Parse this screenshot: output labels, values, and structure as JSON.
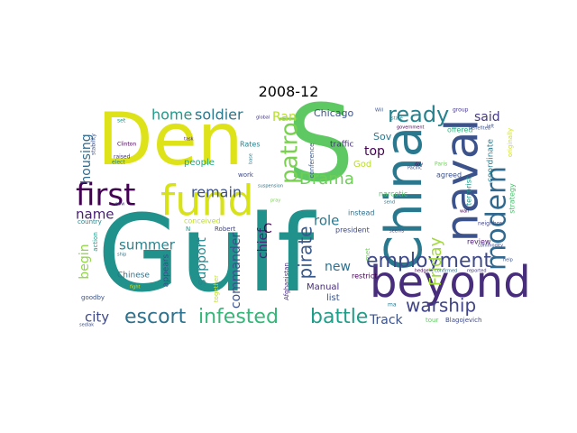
{
  "chart_data": {
    "type": "wordcloud",
    "title": "2008-12",
    "background": "#ffffff",
    "words": [
      {
        "text": "Gulf",
        "color": "#21918c"
      },
      {
        "text": "Den",
        "color": "#dde318"
      },
      {
        "text": "S",
        "color": "#5ec962"
      },
      {
        "text": "fund",
        "color": "#d8e219"
      },
      {
        "text": "China",
        "color": "#2a788e"
      },
      {
        "text": "naval",
        "color": "#3b528b"
      },
      {
        "text": "beyond",
        "color": "#472d7b"
      },
      {
        "text": "first",
        "color": "#440154"
      },
      {
        "text": "modern",
        "color": "#31688e"
      },
      {
        "text": "patrol",
        "color": "#7ad151"
      },
      {
        "text": "employment",
        "color": "#3e4989"
      },
      {
        "text": "escort",
        "color": "#2c728e"
      },
      {
        "text": "infested",
        "color": "#35b779"
      },
      {
        "text": "battle",
        "color": "#1f9e89"
      },
      {
        "text": "ready",
        "color": "#26828e"
      },
      {
        "text": "warship",
        "color": "#414487"
      },
      {
        "text": "pirate",
        "color": "#38588c"
      },
      {
        "text": "Drama",
        "color": "#6ece58"
      },
      {
        "text": "Friday",
        "color": "#a0da39"
      },
      {
        "text": "home",
        "color": "#1f9a8a"
      },
      {
        "text": "soldier",
        "color": "#2a788e"
      },
      {
        "text": "remain",
        "color": "#3b528b"
      },
      {
        "text": "housing",
        "color": "#306a8e"
      },
      {
        "text": "begin",
        "color": "#90d743"
      },
      {
        "text": "summer",
        "color": "#25848e"
      },
      {
        "text": "name",
        "color": "#482173"
      },
      {
        "text": "city",
        "color": "#3e4a89"
      },
      {
        "text": "role",
        "color": "#2a788e"
      },
      {
        "text": "Track",
        "color": "#3b528b"
      },
      {
        "text": "support",
        "color": "#24878e"
      },
      {
        "text": "commander",
        "color": "#3b528b"
      },
      {
        "text": "chief",
        "color": "#482475"
      },
      {
        "text": "C",
        "color": "#440154"
      },
      {
        "text": "new",
        "color": "#2d708e"
      },
      {
        "text": "top",
        "color": "#440154"
      },
      {
        "text": "said",
        "color": "#443983"
      },
      {
        "text": "Ran",
        "color": "#b5de2b"
      },
      {
        "text": "Chicago",
        "color": "#3b528b"
      },
      {
        "text": "people",
        "color": "#22a884"
      },
      {
        "text": "God",
        "color": "#b8de29"
      },
      {
        "text": "Sov",
        "color": "#2a788e"
      },
      {
        "text": "Manual",
        "color": "#472d7b"
      },
      {
        "text": "list",
        "color": "#3b528b"
      },
      {
        "text": "appears",
        "color": "#3e4a89"
      },
      {
        "text": "Chinese",
        "color": "#2c728e"
      },
      {
        "text": "traffic",
        "color": "#46327e"
      },
      {
        "text": "coordinate",
        "color": "#287c8e"
      },
      {
        "text": "terrorist",
        "color": "#1f988b"
      },
      {
        "text": "strategy",
        "color": "#4ac16d"
      },
      {
        "text": "originally",
        "color": "#d0e11c"
      },
      {
        "text": "review",
        "color": "#481a6c"
      },
      {
        "text": "offered",
        "color": "#2eb37c"
      },
      {
        "text": "agreed",
        "color": "#3b528b"
      },
      {
        "text": "narcotic",
        "color": "#50c46a"
      },
      {
        "text": "instead",
        "color": "#2d708e"
      },
      {
        "text": "president",
        "color": "#3e4989"
      },
      {
        "text": "conceived",
        "color": "#bddf26"
      },
      {
        "text": "Rates",
        "color": "#26828e"
      },
      {
        "text": "work",
        "color": "#3e4989"
      },
      {
        "text": "Robert",
        "color": "#414487"
      },
      {
        "text": "country",
        "color": "#24868e"
      },
      {
        "text": "action",
        "color": "#1f9e89"
      },
      {
        "text": "restrict",
        "color": "#440154"
      },
      {
        "text": "Afghanistan",
        "color": "#472c7a"
      },
      {
        "text": "conference",
        "color": "#38588c"
      },
      {
        "text": "goodby",
        "color": "#3b528b"
      },
      {
        "text": "Blagojevich",
        "color": "#3e4a89"
      },
      {
        "text": "tour",
        "color": "#5ec962"
      },
      {
        "text": "met",
        "color": "#6ece58"
      },
      {
        "text": "together",
        "color": "#bddf26"
      },
      {
        "text": "elect",
        "color": "#25848e"
      },
      {
        "text": "stability",
        "color": "#3b528b"
      },
      {
        "text": "raised",
        "color": "#453781"
      },
      {
        "text": "Clinton",
        "color": "#440154"
      },
      {
        "text": "set",
        "color": "#1f988b"
      },
      {
        "text": "government",
        "color": "#440154"
      },
      {
        "text": "state",
        "color": "#26828e"
      },
      {
        "text": "Will",
        "color": "#3b528b"
      },
      {
        "text": "group",
        "color": "#443983"
      },
      {
        "text": "benefited",
        "color": "#3b528b"
      },
      {
        "text": "neighbor",
        "color": "#404688"
      },
      {
        "text": "Paris",
        "color": "#6ece58"
      },
      {
        "text": "wall",
        "color": "#440154"
      },
      {
        "text": "commodity",
        "color": "#3e4989"
      },
      {
        "text": "reported",
        "color": "#443983"
      },
      {
        "text": "confirmed",
        "color": "#2c728e"
      },
      {
        "text": "hedge",
        "color": "#440154"
      },
      {
        "text": "seems",
        "color": "#3e4989"
      },
      {
        "text": "send",
        "color": "#2a788e"
      },
      {
        "text": "ship",
        "color": "#2a788e"
      },
      {
        "text": "fight",
        "color": "#d8e219"
      },
      {
        "text": "global",
        "color": "#453781"
      },
      {
        "text": "task",
        "color": "#482878"
      },
      {
        "text": "Pacific",
        "color": "#3b528b"
      },
      {
        "text": "pray",
        "color": "#7ad151"
      },
      {
        "text": "suspension",
        "color": "#2a788e"
      },
      {
        "text": "ma",
        "color": "#2a788e"
      },
      {
        "text": "day",
        "color": "#440154"
      },
      {
        "text": "help",
        "color": "#3b528b"
      },
      {
        "text": "left",
        "color": "#3b528b"
      },
      {
        "text": "now",
        "color": "#443983"
      },
      {
        "text": "base",
        "color": "#2a788e"
      },
      {
        "text": "N",
        "color": "#1f988b"
      },
      {
        "text": "sedlak",
        "color": "#3b528b"
      }
    ]
  }
}
